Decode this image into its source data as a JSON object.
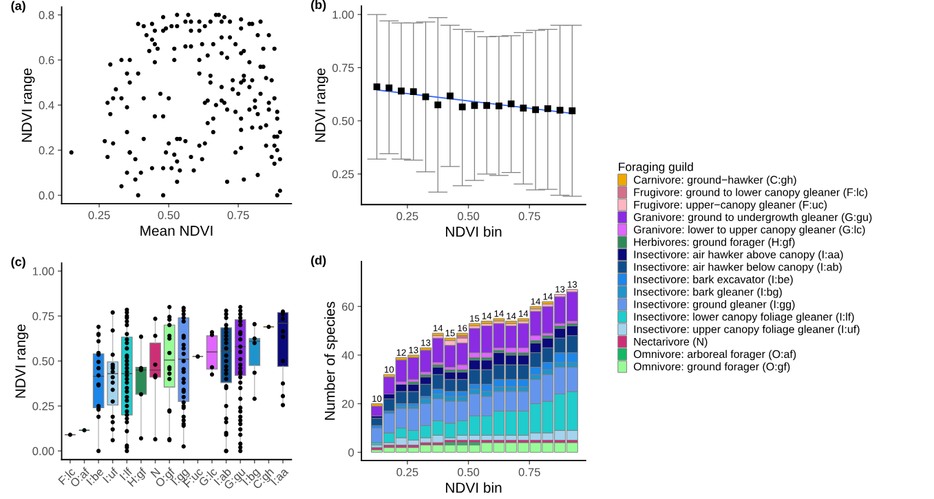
{
  "chart_data": [
    {
      "type": "scatter",
      "title": "(a)",
      "xlabel": "Mean NDVI",
      "ylabel": "NDVI range",
      "xlim": [
        0.115,
        0.941
      ],
      "xticks": [
        {
          "value": 0.25,
          "label": "0.25"
        },
        {
          "value": 0.5,
          "label": "0.50"
        },
        {
          "value": 0.75,
          "label": "0.75"
        }
      ],
      "ylim": [
        -0.037,
        0.835
      ],
      "yticks": [
        {
          "value": 0,
          "label": "0.0"
        },
        {
          "value": 0.2,
          "label": "0.2"
        },
        {
          "value": 0.4,
          "label": "0.4"
        },
        {
          "value": 0.6,
          "label": "0.6"
        },
        {
          "value": 0.8,
          "label": "0.8"
        }
      ],
      "marker": "circle",
      "series": [
        {
          "color": "#000000",
          "x": [
            0.15,
            0.29,
            0.28,
            0.29,
            0.27,
            0.28,
            0.3,
            0.3,
            0.31,
            0.33,
            0.33,
            0.33,
            0.35,
            0.35,
            0.35,
            0.35,
            0.36,
            0.36,
            0.36,
            0.36,
            0.38,
            0.38,
            0.39,
            0.39,
            0.41,
            0.4,
            0.39,
            0.41,
            0.41,
            0.42,
            0.43,
            0.44,
            0.44,
            0.44,
            0.45,
            0.45,
            0.45,
            0.46,
            0.45,
            0.47,
            0.48,
            0.48,
            0.48,
            0.48,
            0.48,
            0.49,
            0.5,
            0.5,
            0.49,
            0.51,
            0.52,
            0.52,
            0.52,
            0.53,
            0.53,
            0.53,
            0.53,
            0.54,
            0.54,
            0.51,
            0.53,
            0.56,
            0.56,
            0.57,
            0.56,
            0.58,
            0.58,
            0.58,
            0.58,
            0.59,
            0.61,
            0.61,
            0.61,
            0.61,
            0.62,
            0.62,
            0.61,
            0.63,
            0.63,
            0.64,
            0.64,
            0.63,
            0.64,
            0.65,
            0.65,
            0.66,
            0.65,
            0.66,
            0.66,
            0.67,
            0.67,
            0.68,
            0.69,
            0.69,
            0.69,
            0.7,
            0.69,
            0.7,
            0.69,
            0.71,
            0.71,
            0.71,
            0.72,
            0.72,
            0.73,
            0.73,
            0.74,
            0.74,
            0.75,
            0.74,
            0.76,
            0.76,
            0.76,
            0.76,
            0.76,
            0.77,
            0.76,
            0.77,
            0.77,
            0.77,
            0.79,
            0.79,
            0.79,
            0.79,
            0.8,
            0.8,
            0.8,
            0.81,
            0.81,
            0.82,
            0.82,
            0.83,
            0.82,
            0.83,
            0.83,
            0.83,
            0.84,
            0.84,
            0.85,
            0.85,
            0.85,
            0.86,
            0.86,
            0.87,
            0.88,
            0.88,
            0.88,
            0.87,
            0.88,
            0.88,
            0.89,
            0.89,
            0.89,
            0.89,
            0.9,
            0.9,
            0.9,
            0.89,
            0.86,
            0.76
          ],
          "values": [
            0.19,
            0.58,
            0.41,
            0.36,
            0.24,
            0.17,
            0.23,
            0.43,
            0.47,
            0.6,
            0.43,
            0.04,
            0.54,
            0.39,
            0.28,
            0.1,
            0.6,
            0.5,
            0.19,
            0.19,
            0.07,
            0.16,
            0.54,
            0.76,
            0.75,
            0.1,
            0.0,
            0.25,
            0.43,
            0.71,
            0.64,
            0.69,
            0.76,
            0.12,
            0.67,
            0.59,
            0.35,
            0.65,
            0.73,
            0.45,
            0.35,
            0.79,
            0.0,
            0.12,
            0.73,
            0.74,
            0.43,
            0.23,
            0.19,
            0.12,
            0.18,
            0.65,
            0.6,
            0.15,
            0.8,
            0.25,
            0.06,
            0.11,
            0.25,
            0.75,
            0.75,
            0.66,
            0.77,
            0.8,
            0.24,
            0.77,
            0.73,
            0.66,
            0.17,
            0.11,
            0.54,
            0.22,
            0.6,
            0.77,
            0.16,
            0.67,
            0.73,
            0.75,
            0.23,
            0.62,
            0.42,
            0.41,
            0.32,
            0.5,
            0.53,
            0.67,
            0.77,
            0.28,
            0.34,
            0.4,
            0.8,
            0.8,
            0.48,
            0.7,
            0.77,
            0.79,
            0.42,
            0.41,
            0.63,
            0.61,
            0.38,
            0.06,
            0.7,
            0.77,
            0.51,
            0.47,
            0.37,
            0.67,
            0.45,
            0.19,
            0.63,
            0.78,
            0.34,
            0.29,
            0.21,
            0.07,
            0.74,
            0.64,
            0.51,
            0.53,
            0.38,
            0.76,
            0.59,
            0.48,
            0.51,
            0.3,
            0.76,
            0.42,
            0.39,
            0.09,
            0.71,
            0.57,
            0.36,
            0.77,
            0.3,
            0.45,
            0.57,
            0.65,
            0.22,
            0.31,
            0.52,
            0.71,
            0.41,
            0.51,
            0.26,
            0.65,
            0.43,
            0.17,
            0.14,
            0.22,
            0.0,
            0.34,
            0.37,
            0.2,
            0.28,
            0.16,
            0.02,
            0.26,
            0.38,
            0.5
          ]
        }
      ]
    },
    {
      "type": "scatter",
      "title": "(b)",
      "xlabel": "NDVI bin",
      "ylabel": "NDVI range",
      "xlim": [
        0.062,
        0.98
      ],
      "xticks": [
        {
          "value": 0.25,
          "label": "0.25"
        },
        {
          "value": 0.5,
          "label": "0.50"
        },
        {
          "value": 0.75,
          "label": "0.75"
        }
      ],
      "ylim": [
        0.106,
        1.04
      ],
      "yticks": [
        {
          "value": 0.25,
          "label": "0.25"
        },
        {
          "value": 0.5,
          "label": "0.50"
        },
        {
          "value": 0.75,
          "label": "0.75"
        },
        {
          "value": 1.0,
          "label": "1.00"
        }
      ],
      "x": [
        0.125,
        0.175,
        0.225,
        0.275,
        0.325,
        0.375,
        0.425,
        0.475,
        0.525,
        0.575,
        0.625,
        0.675,
        0.725,
        0.775,
        0.825,
        0.875,
        0.925
      ],
      "series": [
        {
          "type": "scatter",
          "marker": "square",
          "color": "#000000",
          "values": [
            0.66,
            0.655,
            0.64,
            0.637,
            0.613,
            0.575,
            0.617,
            0.565,
            0.572,
            0.572,
            0.57,
            0.58,
            0.56,
            0.552,
            0.557,
            0.55,
            0.547
          ],
          "errors": [
            [
              0.32,
              1.0
            ],
            [
              0.345,
              0.97
            ],
            [
              0.32,
              0.96
            ],
            [
              0.315,
              0.96
            ],
            [
              0.26,
              0.965
            ],
            [
              0.165,
              0.985
            ],
            [
              0.285,
              0.95
            ],
            [
              0.195,
              0.93
            ],
            [
              0.22,
              0.92
            ],
            [
              0.25,
              0.895
            ],
            [
              0.243,
              0.897
            ],
            [
              0.257,
              0.9
            ],
            [
              0.203,
              0.915
            ],
            [
              0.175,
              0.925
            ],
            [
              0.178,
              0.93
            ],
            [
              0.15,
              0.95
            ],
            [
              0.145,
              0.95
            ]
          ]
        },
        {
          "type": "line",
          "x": [
            0.125,
            0.925
          ],
          "values": [
            0.645,
            0.535
          ],
          "color": "#3366ff",
          "line_style": "solid"
        }
      ]
    },
    {
      "type": "box",
      "title": "(c)",
      "ylabel": "NDVI range",
      "categories": [
        "F:lc",
        "O:af",
        "I:be",
        "I:uf",
        "I:lf",
        "H:gf",
        "N",
        "O:gf",
        "I:gg",
        "F:uc",
        "G:lc",
        "I:ab",
        "G:gu",
        "I:bg",
        "C:gh",
        "I:aa"
      ],
      "ylim": [
        -0.048,
        1.045
      ],
      "yticks": [
        {
          "value": 0,
          "label": "0.00"
        },
        {
          "value": 0.25,
          "label": "0.25"
        },
        {
          "value": 0.5,
          "label": "0.50"
        },
        {
          "value": 0.75,
          "label": "0.75"
        },
        {
          "value": 1.0,
          "label": "1.00"
        }
      ],
      "series": [
        {
          "type": "box",
          "colors": [
            "#d4708a",
            "#12b865",
            "#1e86e8",
            "#a4d3ee",
            "#20cccc",
            "#2e8b57",
            "#cd2f77",
            "#98fb98",
            "#6495ed",
            "#ffb6c1",
            "#e066ff",
            "#104e8b",
            "#8b2be2",
            "#1f94cc",
            "#f0a800",
            "#0a0a7a"
          ],
          "boxes": [
            {
              "low": 0.09,
              "q1": 0.09,
              "median": 0.09,
              "q3": 0.09,
              "high": 0.09
            },
            {
              "low": 0.115,
              "q1": 0.115,
              "median": 0.115,
              "q3": 0.115,
              "high": 0.115
            },
            {
              "low": 0.0,
              "q1": 0.24,
              "median": 0.415,
              "q3": 0.54,
              "high": 0.69
            },
            {
              "low": 0.06,
              "q1": 0.255,
              "median": 0.43,
              "q3": 0.495,
              "high": 0.77
            },
            {
              "low": 0.0,
              "q1": 0.2,
              "median": 0.43,
              "q3": 0.633,
              "high": 0.785
            },
            {
              "low": 0.07,
              "q1": 0.315,
              "median": 0.45,
              "q3": 0.465,
              "high": 0.635
            },
            {
              "low": 0.065,
              "q1": 0.41,
              "median": 0.45,
              "q3": 0.6,
              "high": 0.735
            },
            {
              "low": 0.06,
              "q1": 0.355,
              "median": 0.505,
              "q3": 0.7,
              "high": 0.8
            },
            {
              "low": 0.025,
              "q1": 0.275,
              "median": 0.51,
              "q3": 0.74,
              "high": 0.795
            },
            {
              "low": 0.525,
              "q1": 0.525,
              "median": 0.525,
              "q3": 0.525,
              "high": 0.525
            },
            {
              "low": 0.425,
              "q1": 0.455,
              "median": 0.55,
              "q3": 0.64,
              "high": 0.66
            },
            {
              "low": 0.0,
              "q1": 0.38,
              "median": 0.555,
              "q3": 0.685,
              "high": 0.78
            },
            {
              "low": 0.0,
              "q1": 0.42,
              "median": 0.58,
              "q3": 0.73,
              "high": 0.8
            },
            {
              "low": 0.29,
              "q1": 0.475,
              "median": 0.61,
              "q3": 0.625,
              "high": 0.705
            },
            {
              "low": 0.69,
              "q1": 0.69,
              "median": 0.69,
              "q3": 0.69,
              "high": 0.69
            },
            {
              "low": 0.255,
              "q1": 0.47,
              "median": 0.71,
              "q3": 0.77,
              "high": 0.775
            }
          ]
        },
        {
          "type": "scatter",
          "marker": "circle",
          "color": "#000000",
          "x": [
            "F:lc",
            "O:af",
            "I:be",
            "I:be",
            "I:be",
            "I:be",
            "I:be",
            "I:be",
            "I:be",
            "I:be",
            "I:be",
            "I:be",
            "I:be",
            "I:be",
            "I:be",
            "I:be",
            "I:be",
            "I:be",
            "I:uf",
            "I:uf",
            "I:uf",
            "I:uf",
            "I:uf",
            "I:uf",
            "I:uf",
            "I:uf",
            "I:uf",
            "I:uf",
            "I:uf",
            "I:uf",
            "I:uf",
            "I:uf",
            "I:uf",
            "I:lf",
            "I:lf",
            "I:lf",
            "I:lf",
            "I:lf",
            "I:lf",
            "I:lf",
            "I:lf",
            "I:lf",
            "I:lf",
            "I:lf",
            "I:lf",
            "I:lf",
            "I:lf",
            "I:lf",
            "I:lf",
            "I:lf",
            "I:lf",
            "I:lf",
            "I:lf",
            "I:lf",
            "I:lf",
            "I:lf",
            "I:lf",
            "I:lf",
            "I:lf",
            "I:lf",
            "I:lf",
            "I:lf",
            "I:lf",
            "I:lf",
            "I:lf",
            "H:gf",
            "H:gf",
            "H:gf",
            "H:gf",
            "H:gf",
            "N",
            "N",
            "N",
            "N",
            "N",
            "N",
            "O:gf",
            "O:gf",
            "O:gf",
            "O:gf",
            "O:gf",
            "O:gf",
            "O:gf",
            "O:gf",
            "O:gf",
            "O:gf",
            "O:gf",
            "O:gf",
            "O:gf",
            "O:gf",
            "O:gf",
            "I:gg",
            "I:gg",
            "I:gg",
            "I:gg",
            "I:gg",
            "I:gg",
            "I:gg",
            "I:gg",
            "I:gg",
            "I:gg",
            "I:gg",
            "I:gg",
            "I:gg",
            "I:gg",
            "I:gg",
            "I:gg",
            "I:gg",
            "I:gg",
            "I:gg",
            "I:gg",
            "I:gg",
            "I:gg",
            "I:gg",
            "I:gg",
            "I:gg",
            "I:gg",
            "F:uc",
            "G:lc",
            "G:lc",
            "G:lc",
            "G:lc",
            "I:ab",
            "I:ab",
            "I:ab",
            "I:ab",
            "I:ab",
            "I:ab",
            "I:ab",
            "I:ab",
            "I:ab",
            "I:ab",
            "I:ab",
            "I:ab",
            "I:ab",
            "I:ab",
            "I:ab",
            "I:ab",
            "I:ab",
            "I:ab",
            "I:ab",
            "I:ab",
            "I:ab",
            "I:ab",
            "I:ab",
            "I:ab",
            "I:ab",
            "G:gu",
            "G:gu",
            "G:gu",
            "G:gu",
            "G:gu",
            "G:gu",
            "G:gu",
            "G:gu",
            "G:gu",
            "G:gu",
            "G:gu",
            "G:gu",
            "G:gu",
            "G:gu",
            "G:gu",
            "G:gu",
            "G:gu",
            "G:gu",
            "G:gu",
            "G:gu",
            "G:gu",
            "G:gu",
            "G:gu",
            "G:gu",
            "G:gu",
            "G:gu",
            "G:gu",
            "G:gu",
            "G:gu",
            "G:gu",
            "I:bg",
            "I:bg",
            "I:bg",
            "I:bg",
            "I:bg",
            "C:gh",
            "I:aa",
            "I:aa",
            "I:aa",
            "I:aa",
            "I:aa",
            "I:aa",
            "I:aa",
            "I:aa",
            "I:aa",
            "I:aa"
          ],
          "values": [
            0.09,
            0.115,
            0.69,
            0.65,
            0.645,
            0.61,
            0.545,
            0.535,
            0.495,
            0.46,
            0.42,
            0.37,
            0.365,
            0.25,
            0.235,
            0.23,
            0.19,
            0.0,
            0.77,
            0.67,
            0.535,
            0.48,
            0.47,
            0.46,
            0.44,
            0.41,
            0.38,
            0.34,
            0.275,
            0.19,
            0.16,
            0.12,
            0.06,
            0.785,
            0.77,
            0.75,
            0.74,
            0.72,
            0.7,
            0.65,
            0.62,
            0.6,
            0.57,
            0.53,
            0.52,
            0.5,
            0.48,
            0.46,
            0.44,
            0.42,
            0.4,
            0.38,
            0.35,
            0.33,
            0.3,
            0.28,
            0.25,
            0.22,
            0.2,
            0.18,
            0.16,
            0.11,
            0.03,
            0.02,
            0.0,
            0.635,
            0.46,
            0.45,
            0.315,
            0.07,
            0.735,
            0.64,
            0.48,
            0.42,
            0.41,
            0.065,
            0.8,
            0.745,
            0.73,
            0.7,
            0.64,
            0.625,
            0.545,
            0.465,
            0.455,
            0.43,
            0.4,
            0.225,
            0.22,
            0.065,
            0.06,
            0.795,
            0.78,
            0.76,
            0.74,
            0.72,
            0.64,
            0.63,
            0.59,
            0.57,
            0.54,
            0.5,
            0.455,
            0.44,
            0.4,
            0.38,
            0.34,
            0.33,
            0.3,
            0.27,
            0.25,
            0.24,
            0.19,
            0.17,
            0.15,
            0.14,
            0.025,
            0.525,
            0.66,
            0.645,
            0.465,
            0.425,
            0.78,
            0.76,
            0.74,
            0.7,
            0.68,
            0.66,
            0.64,
            0.62,
            0.6,
            0.57,
            0.53,
            0.5,
            0.47,
            0.45,
            0.43,
            0.4,
            0.36,
            0.35,
            0.25,
            0.18,
            0.16,
            0.1,
            0.09,
            0.0,
            0.0,
            0.8,
            0.78,
            0.76,
            0.74,
            0.72,
            0.7,
            0.66,
            0.65,
            0.62,
            0.58,
            0.55,
            0.51,
            0.48,
            0.46,
            0.44,
            0.43,
            0.41,
            0.38,
            0.35,
            0.29,
            0.24,
            0.22,
            0.19,
            0.17,
            0.15,
            0.12,
            0.09,
            0.04,
            0.02,
            0.0,
            0.705,
            0.625,
            0.6,
            0.435,
            0.29,
            0.69,
            0.775,
            0.765,
            0.76,
            0.735,
            0.665,
            0.635,
            0.5,
            0.375,
            0.305,
            0.255
          ]
        }
      ]
    },
    {
      "type": "bar",
      "stacked": true,
      "title": "(d)",
      "xlabel": "NDVI bin",
      "ylabel": "Number of species",
      "legend_title": "Foraging guild",
      "legend": "right",
      "xlim": [
        0.062,
        0.98
      ],
      "xticks": [
        {
          "value": 0.25,
          "label": "0.25"
        },
        {
          "value": 0.5,
          "label": "0.50"
        },
        {
          "value": 0.75,
          "label": "0.75"
        }
      ],
      "ylim": [
        -3.4,
        78.5
      ],
      "yticks": [
        0,
        20,
        40,
        60
      ],
      "x": [
        0.125,
        0.175,
        0.225,
        0.275,
        0.325,
        0.375,
        0.425,
        0.475,
        0.525,
        0.575,
        0.625,
        0.675,
        0.725,
        0.775,
        0.825,
        0.875,
        0.925
      ],
      "series": [
        {
          "name": "Omnivore: ground forager (O:gf)",
          "color": "#98fb98",
          "values": [
            1,
            2,
            2,
            2,
            3,
            3,
            3,
            3,
            3,
            4,
            4,
            4,
            4,
            4,
            4,
            4,
            4
          ]
        },
        {
          "name": "Omnivore: arboreal forager (O:af)",
          "color": "#12b865",
          "values": [
            0,
            0,
            0,
            0,
            0,
            0,
            1,
            1,
            1,
            0,
            0,
            0,
            0,
            0,
            0,
            0,
            0
          ]
        },
        {
          "name": "Nectarivore (N)",
          "color": "#cd2f77",
          "values": [
            1,
            1,
            1,
            1,
            1,
            1,
            1,
            1,
            1,
            1,
            1,
            1,
            1,
            1,
            1,
            1,
            1
          ]
        },
        {
          "name": "Insectivore: upper canopy foliage gleaner (I:uf)",
          "color": "#a4d3ee",
          "values": [
            1,
            1,
            3,
            2,
            2,
            3,
            1,
            2,
            2,
            2,
            2,
            2,
            2,
            3,
            3,
            4,
            4
          ]
        },
        {
          "name": "Insectivore: lower canopy foliage gleaner (I:lf)",
          "color": "#20cccc",
          "values": [
            1,
            4,
            4,
            4,
            5,
            6,
            6,
            6,
            8,
            8,
            10,
            10,
            10,
            12,
            13,
            15,
            16
          ]
        },
        {
          "name": "Insectivore: ground gleaner (I:gg)",
          "color": "#6495ed",
          "values": [
            6,
            8,
            8,
            9,
            9,
            9,
            9,
            8,
            9,
            8,
            8,
            8,
            8,
            10,
            11,
            11,
            10
          ]
        },
        {
          "name": "Insectivore: bark gleaner (I:bg)",
          "color": "#1f94cc",
          "values": [
            0,
            0,
            1,
            1,
            2,
            2,
            2,
            2,
            2,
            2,
            2,
            2,
            2,
            2,
            2,
            2,
            2
          ]
        },
        {
          "name": "Insectivore: bark excavator (I:be)",
          "color": "#1e86e8",
          "values": [
            1,
            1,
            1,
            1,
            1,
            2,
            2,
            2,
            2,
            3,
            3,
            3,
            3,
            3,
            3,
            4,
            4
          ]
        },
        {
          "name": "Insectivore: air hawker below canopy (I:ab)",
          "color": "#104e8b",
          "values": [
            3,
            5,
            5,
            5,
            5,
            6,
            5,
            5,
            6,
            6,
            6,
            6,
            6,
            6,
            6,
            6,
            7
          ]
        },
        {
          "name": "Insectivore: air hawker above canopy (I:aa)",
          "color": "#0a0a7a",
          "values": [
            1,
            2,
            3,
            3,
            3,
            3,
            3,
            3,
            4,
            4,
            5,
            4,
            4,
            4,
            4,
            4,
            4
          ]
        },
        {
          "name": "Herbivores: ground forager (H:gf)",
          "color": "#2e8b57",
          "values": [
            0,
            0,
            0,
            1,
            1,
            1,
            1,
            1,
            1,
            1,
            1,
            1,
            1,
            1,
            1,
            1,
            1
          ]
        },
        {
          "name": "Granivore: lower to upper canopy gleaner (G:lc)",
          "color": "#e066ff",
          "values": [
            0,
            0,
            1,
            1,
            1,
            1,
            1,
            2,
            2,
            2,
            1,
            2,
            2,
            2,
            1,
            1,
            1
          ]
        },
        {
          "name": "Granivore: ground to undergrowth gleaner (G:gu)",
          "color": "#8b2be2",
          "values": [
            4,
            7,
            9,
            9,
            9,
            10,
            9,
            9,
            10,
            11,
            10,
            9,
            10,
            10,
            11,
            11,
            12
          ]
        },
        {
          "name": "Frugivore: upper−canopy gleaner (F:uc)",
          "color": "#ffb6c1",
          "values": [
            0,
            0,
            0,
            0,
            0,
            1,
            2,
            2,
            1,
            1,
            1,
            1,
            1,
            1,
            1,
            1,
            1
          ]
        },
        {
          "name": "Frugivore: ground to lower canopy gleaner (F:lc)",
          "color": "#d4708a",
          "values": [
            0,
            0,
            0,
            0,
            0,
            0,
            0,
            1,
            0,
            0,
            0,
            0,
            0,
            0,
            0,
            0,
            0
          ]
        },
        {
          "name": "Carnivore: ground−hawker (C:gh)",
          "color": "#f0a800",
          "values": [
            1,
            1,
            1,
            1,
            1,
            1,
            1,
            1,
            1,
            1,
            1,
            1,
            1,
            1,
            1,
            0,
            0
          ]
        }
      ],
      "annotations": [
        {
          "text": "10",
          "x": 0.125,
          "y": 20
        },
        {
          "text": "10",
          "x": 0.175,
          "y": 32
        },
        {
          "text": "12",
          "x": 0.225,
          "y": 39
        },
        {
          "text": "13",
          "x": 0.275,
          "y": 40
        },
        {
          "text": "13",
          "x": 0.325,
          "y": 43
        },
        {
          "text": "14",
          "x": 0.375,
          "y": 49
        },
        {
          "text": "15",
          "x": 0.425,
          "y": 47
        },
        {
          "text": "16",
          "x": 0.475,
          "y": 49
        },
        {
          "text": "15",
          "x": 0.525,
          "y": 53
        },
        {
          "text": "14",
          "x": 0.575,
          "y": 54
        },
        {
          "text": "14",
          "x": 0.625,
          "y": 55
        },
        {
          "text": "14",
          "x": 0.675,
          "y": 54
        },
        {
          "text": "14",
          "x": 0.725,
          "y": 55
        },
        {
          "text": "14",
          "x": 0.775,
          "y": 60
        },
        {
          "text": "14",
          "x": 0.825,
          "y": 62
        },
        {
          "text": "13",
          "x": 0.875,
          "y": 65
        },
        {
          "text": "13",
          "x": 0.925,
          "y": 67
        }
      ]
    }
  ]
}
